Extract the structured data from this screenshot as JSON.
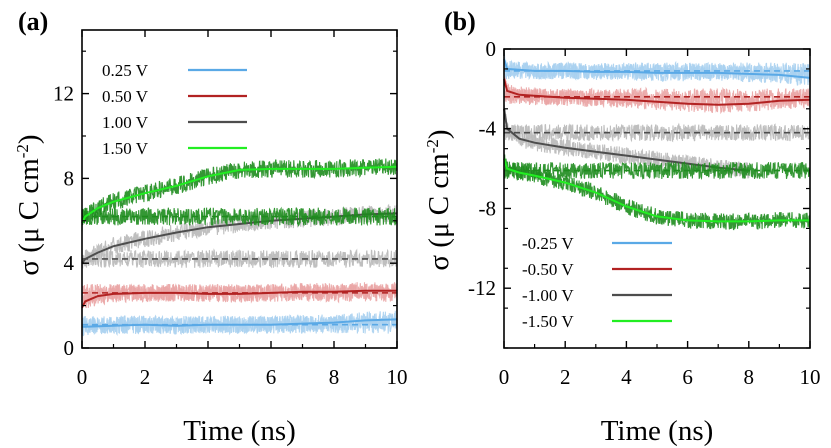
{
  "chart_data": [
    {
      "type": "line",
      "panel_label": "(a)",
      "xlabel": "Time (ns)",
      "ylabel_main": "σ (μ C cm",
      "ylabel_sup": "-2",
      "ylabel_close": ")",
      "xlim": [
        0,
        10
      ],
      "ylim": [
        0,
        15
      ],
      "xticks": [
        0,
        2,
        4,
        6,
        8,
        10
      ],
      "xtick_labels": [
        "0",
        "2",
        "4",
        "6",
        "8",
        "10"
      ],
      "yticks": [
        0,
        4,
        8,
        12
      ],
      "ytick_labels": [
        "0",
        "4",
        "8",
        "12"
      ],
      "legend_position": "top-left",
      "series": [
        {
          "name": "0.25 V",
          "color": "#5aa9e6",
          "raw_color": "#a9d0f0",
          "steady": 1.1,
          "x": [
            0,
            0.1,
            1,
            2,
            3,
            4,
            5,
            6,
            7,
            8,
            9,
            10
          ],
          "y": [
            1.0,
            1.0,
            1.05,
            1.1,
            1.05,
            1.1,
            1.1,
            1.1,
            1.15,
            1.2,
            1.3,
            1.35
          ]
        },
        {
          "name": "0.50 V",
          "color": "#b22222",
          "raw_color": "#eaa5a5",
          "steady": 2.6,
          "x": [
            0,
            0.1,
            0.5,
            1,
            2,
            3,
            4,
            5,
            6,
            7,
            8,
            9,
            10
          ],
          "y": [
            1.9,
            2.2,
            2.45,
            2.55,
            2.6,
            2.6,
            2.55,
            2.55,
            2.6,
            2.65,
            2.65,
            2.7,
            2.7
          ]
        },
        {
          "name": "1.00 V",
          "color": "#4d4d4d",
          "raw_color": "#b8b8b8",
          "steady": 4.2,
          "x": [
            0,
            0.1,
            0.5,
            1,
            2,
            3,
            4,
            5,
            6,
            7,
            8,
            9,
            10
          ],
          "y": [
            4.0,
            4.2,
            4.5,
            4.8,
            5.15,
            5.45,
            5.7,
            5.85,
            6.0,
            6.1,
            6.2,
            6.3,
            6.35
          ]
        },
        {
          "name": "1.50 V",
          "color": "#22ee22",
          "raw_color": "#1e8c1e",
          "steady": 6.2,
          "x": [
            0,
            0.1,
            0.5,
            1,
            2,
            3,
            4,
            5,
            6,
            7,
            8,
            9,
            10
          ],
          "y": [
            5.9,
            6.2,
            6.6,
            6.9,
            7.3,
            7.65,
            8.1,
            8.4,
            8.45,
            8.45,
            8.45,
            8.5,
            8.55
          ]
        }
      ]
    },
    {
      "type": "line",
      "panel_label": "(b)",
      "xlabel": "Time (ns)",
      "ylabel_main": "σ (μ C cm",
      "ylabel_sup": "-2",
      "ylabel_close": ")",
      "xlim": [
        0,
        10
      ],
      "ylim": [
        -15,
        0
      ],
      "xticks": [
        0,
        2,
        4,
        6,
        8,
        10
      ],
      "xtick_labels": [
        "0",
        "2",
        "4",
        "6",
        "8",
        "10"
      ],
      "yticks": [
        0,
        -4,
        -8,
        -12
      ],
      "ytick_labels": [
        "0",
        "-4",
        "-8",
        "-12"
      ],
      "legend_position": "bottom-left",
      "series": [
        {
          "name": "-0.25 V",
          "color": "#5aa9e6",
          "raw_color": "#a9d0f0",
          "steady": -1.1,
          "x": [
            0,
            0.1,
            1,
            2,
            3,
            4,
            5,
            6,
            7,
            8,
            9,
            10
          ],
          "y": [
            -0.5,
            -1.0,
            -1.1,
            -1.1,
            -1.15,
            -1.15,
            -1.2,
            -1.2,
            -1.2,
            -1.25,
            -1.3,
            -1.45
          ]
        },
        {
          "name": "-0.50 V",
          "color": "#b22222",
          "raw_color": "#eaa5a5",
          "steady": -2.4,
          "x": [
            0,
            0.1,
            0.5,
            1,
            2,
            3,
            4,
            5,
            6,
            7,
            8,
            9,
            10
          ],
          "y": [
            -1.5,
            -2.1,
            -2.3,
            -2.35,
            -2.45,
            -2.5,
            -2.55,
            -2.65,
            -2.75,
            -2.8,
            -2.75,
            -2.6,
            -2.55
          ]
        },
        {
          "name": "-1.00 V",
          "color": "#4d4d4d",
          "raw_color": "#b8b8b8",
          "steady": -4.2,
          "x": [
            0,
            0.1,
            0.5,
            1,
            2,
            3,
            4,
            5,
            6,
            7,
            8
          ],
          "y": [
            -3.0,
            -4.0,
            -4.5,
            -4.7,
            -4.95,
            -5.15,
            -5.35,
            -5.55,
            -5.75,
            -5.95,
            -6.1
          ]
        },
        {
          "name": "-1.50 V",
          "color": "#22ee22",
          "raw_color": "#1e8c1e",
          "steady": -6.1,
          "x": [
            0,
            0.1,
            0.5,
            1,
            2,
            3,
            4,
            5,
            6,
            7,
            8,
            9,
            10
          ],
          "y": [
            -5.5,
            -6.0,
            -6.2,
            -6.35,
            -6.7,
            -7.2,
            -7.9,
            -8.4,
            -8.6,
            -8.65,
            -8.65,
            -8.6,
            -8.6
          ]
        }
      ]
    }
  ]
}
